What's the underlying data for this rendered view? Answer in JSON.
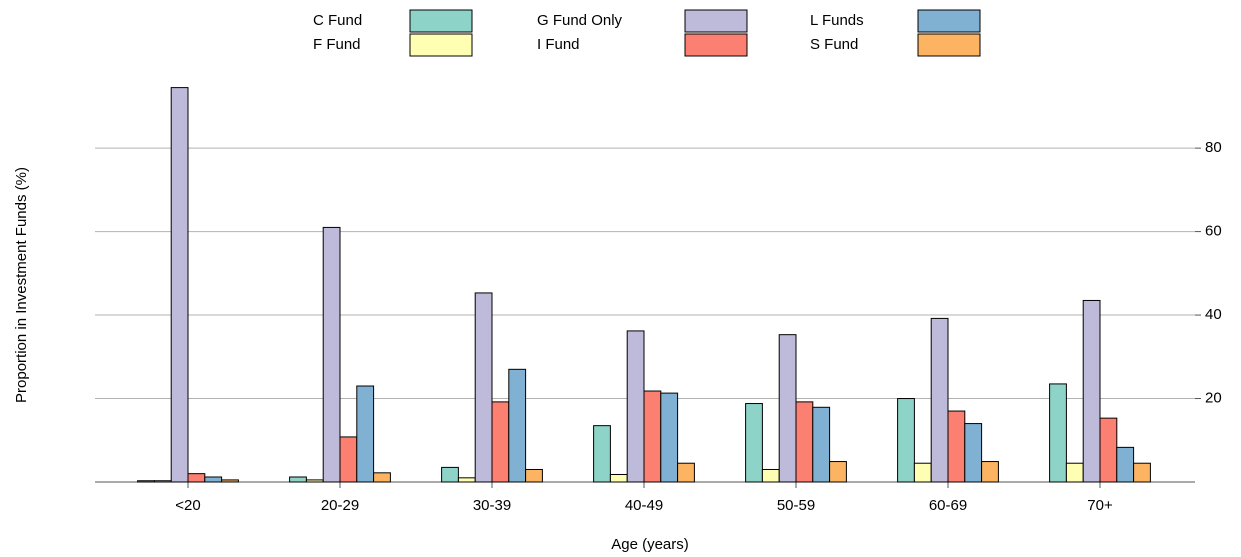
{
  "chart_data": {
    "type": "bar",
    "xlabel": "Age (years)",
    "ylabel": "Proportion in Investment Funds (%)",
    "categories": [
      "<20",
      "20-29",
      "30-39",
      "40-49",
      "50-59",
      "60-69",
      "70+"
    ],
    "series": [
      {
        "name": "C Fund",
        "color": "#8dd3c7",
        "values": [
          0.3,
          1.2,
          3.5,
          13.5,
          18.8,
          20,
          23.5
        ]
      },
      {
        "name": "F Fund",
        "color": "#ffffb3",
        "values": [
          0.3,
          0.5,
          1,
          1.8,
          3,
          4.5,
          4.5
        ]
      },
      {
        "name": "G Fund Only",
        "color": "#bebada",
        "values": [
          94.5,
          61,
          45.3,
          36.2,
          35.3,
          39.2,
          43.5
        ]
      },
      {
        "name": "I Fund",
        "color": "#fb8072",
        "values": [
          2,
          10.8,
          19.2,
          21.8,
          19.2,
          17,
          15.3
        ]
      },
      {
        "name": "L Funds",
        "color": "#80b1d3",
        "values": [
          1.2,
          23,
          27,
          21.3,
          17.9,
          14,
          8.3
        ]
      },
      {
        "name": "S Fund",
        "color": "#fdb462",
        "values": [
          0.5,
          2.2,
          3,
          4.5,
          4.9,
          4.9,
          4.5
        ]
      }
    ],
    "ylim": [
      0,
      98
    ],
    "yticks": [
      20,
      40,
      60,
      80
    ],
    "grid": true,
    "y_axis_side": "right"
  }
}
